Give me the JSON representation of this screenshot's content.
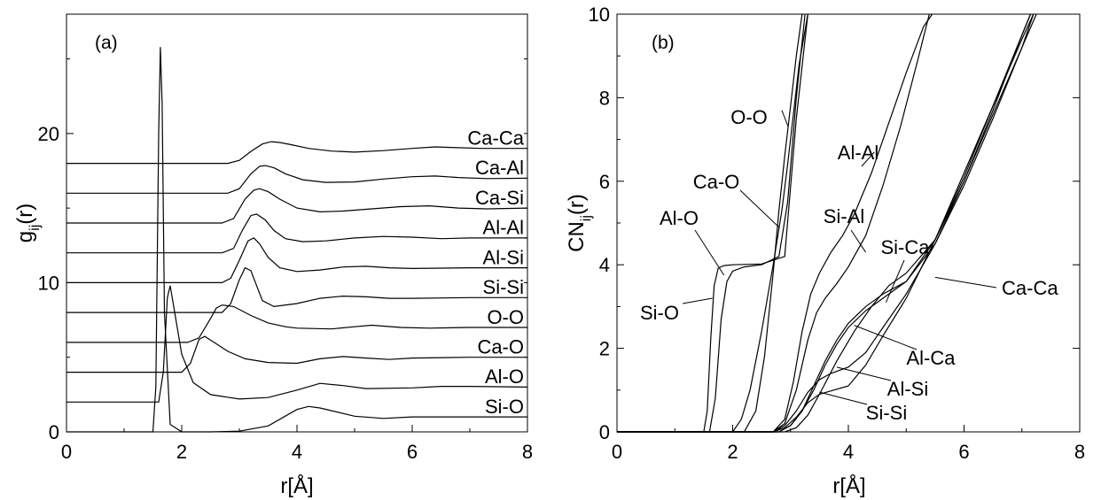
{
  "chart_data": [
    {
      "type": "line",
      "panel_label": "(a)",
      "xlabel": "r[Å]",
      "ylabel": "g_ij(r)",
      "ylabel_main": "g",
      "ylabel_sub": "ij",
      "ylabel_tail": "(r)",
      "xlim": [
        0,
        8
      ],
      "ylim": [
        0,
        28
      ],
      "xticks": [
        0,
        2,
        4,
        6,
        8
      ],
      "yticks": [
        0,
        10,
        20
      ],
      "note": "curves vertically offset by 2 units each",
      "series": [
        {
          "name": "Si-O",
          "offset": 0,
          "x": [
            0,
            1.5,
            1.55,
            1.6,
            1.63,
            1.66,
            1.7,
            1.8,
            2.0,
            2.5,
            3.0,
            3.5,
            4.0,
            4.2,
            4.4,
            5.0,
            5.5,
            6.0,
            7.0,
            8.0
          ],
          "y": [
            0,
            0,
            3,
            20,
            25.8,
            22,
            8,
            0.5,
            0,
            0,
            0.05,
            0.4,
            1.5,
            1.7,
            1.6,
            1.05,
            0.9,
            1.0,
            1.0,
            1.0
          ]
        },
        {
          "name": "Al-O",
          "offset": 2,
          "x": [
            0,
            1.6,
            1.68,
            1.75,
            1.8,
            1.9,
            2.0,
            2.2,
            2.5,
            3.0,
            3.5,
            4.0,
            4.4,
            4.8,
            5.2,
            6.0,
            6.5,
            7.0,
            8.0
          ],
          "y": [
            0,
            0,
            2,
            7,
            7.8,
            5.5,
            3.2,
            1.3,
            0.5,
            0.2,
            0.3,
            0.8,
            1.25,
            1.1,
            0.9,
            0.95,
            1.05,
            1.05,
            1.0
          ]
        },
        {
          "name": "Ca-O",
          "offset": 4,
          "x": [
            0,
            2.0,
            2.15,
            2.3,
            2.4,
            2.6,
            2.8,
            3.1,
            3.5,
            4.0,
            4.4,
            4.8,
            5.2,
            5.6,
            6.0,
            7.0,
            8.0
          ],
          "y": [
            0,
            0,
            0.6,
            2.2,
            2.4,
            1.9,
            1.4,
            0.9,
            0.65,
            0.6,
            0.9,
            1.05,
            0.95,
            0.85,
            0.95,
            1.0,
            1.0
          ]
        },
        {
          "name": "O-O",
          "offset": 6,
          "x": [
            0,
            2.1,
            2.3,
            2.5,
            2.6,
            2.7,
            2.9,
            3.2,
            3.5,
            3.8,
            4.0,
            4.6,
            5.0,
            5.3,
            5.8,
            6.3,
            7.0,
            8.0
          ],
          "y": [
            0,
            0,
            0.3,
            1.6,
            2.3,
            2.5,
            2.4,
            1.8,
            1.3,
            1.05,
            0.95,
            0.9,
            1.05,
            1.15,
            1.0,
            0.95,
            1.0,
            1.0
          ]
        },
        {
          "name": "Si-Si",
          "offset": 8,
          "x": [
            0,
            2.7,
            2.85,
            3.0,
            3.1,
            3.2,
            3.3,
            3.4,
            3.6,
            4.0,
            4.4,
            4.8,
            5.2,
            5.6,
            6.0,
            7.0,
            8.0
          ],
          "y": [
            0,
            0,
            0.6,
            2.2,
            3.0,
            2.8,
            1.8,
            0.8,
            0.4,
            0.6,
            0.95,
            1.1,
            1.05,
            0.95,
            0.95,
            1.0,
            1.0
          ]
        },
        {
          "name": "Al-Si",
          "offset": 10,
          "x": [
            0,
            2.7,
            2.85,
            3.0,
            3.15,
            3.25,
            3.35,
            3.5,
            3.7,
            4.0,
            4.4,
            4.8,
            5.2,
            5.6,
            6.0,
            7.0,
            8.0
          ],
          "y": [
            0,
            0,
            0.3,
            1.5,
            2.8,
            3.0,
            2.6,
            1.7,
            1.0,
            0.75,
            0.85,
            1.05,
            1.1,
            1.0,
            0.95,
            1.0,
            1.0
          ]
        },
        {
          "name": "Al-Al",
          "offset": 12,
          "x": [
            0,
            2.7,
            2.9,
            3.05,
            3.2,
            3.3,
            3.45,
            3.6,
            3.8,
            4.1,
            4.5,
            5.0,
            5.5,
            6.0,
            6.5,
            7.0,
            8.0
          ],
          "y": [
            0,
            0,
            0.3,
            1.5,
            2.5,
            2.6,
            2.2,
            1.5,
            0.95,
            0.75,
            0.8,
            1.0,
            1.1,
            1.05,
            0.95,
            1.0,
            1.0
          ]
        },
        {
          "name": "Ca-Si",
          "offset": 14,
          "x": [
            0,
            2.7,
            2.9,
            3.1,
            3.25,
            3.35,
            3.5,
            3.7,
            4.0,
            4.4,
            4.8,
            5.3,
            5.8,
            6.3,
            6.8,
            7.3,
            8.0
          ],
          "y": [
            0,
            0,
            0.3,
            1.6,
            2.2,
            2.3,
            2.1,
            1.6,
            1.0,
            0.75,
            0.8,
            0.95,
            1.1,
            1.15,
            1.0,
            0.95,
            1.0
          ]
        },
        {
          "name": "Ca-Al",
          "offset": 16,
          "x": [
            0,
            2.8,
            3.0,
            3.2,
            3.35,
            3.45,
            3.6,
            3.8,
            4.1,
            4.5,
            5.0,
            5.5,
            6.0,
            6.4,
            6.8,
            7.3,
            8.0
          ],
          "y": [
            0,
            0,
            0.3,
            1.3,
            1.8,
            1.85,
            1.7,
            1.3,
            0.9,
            0.72,
            0.75,
            0.95,
            1.1,
            1.15,
            1.05,
            0.98,
            1.0
          ]
        },
        {
          "name": "Ca-Ca",
          "offset": 18,
          "x": [
            0,
            2.8,
            3.0,
            3.2,
            3.4,
            3.55,
            3.7,
            3.9,
            4.2,
            4.6,
            5.0,
            5.5,
            6.0,
            6.4,
            6.8,
            7.2,
            8.0
          ],
          "y": [
            0,
            0,
            0.2,
            0.8,
            1.3,
            1.45,
            1.4,
            1.25,
            1.0,
            0.82,
            0.75,
            0.85,
            1.0,
            1.1,
            1.05,
            1.0,
            1.0
          ]
        }
      ]
    },
    {
      "type": "line",
      "panel_label": "(b)",
      "xlabel": "r[Å]",
      "ylabel": "CN_ij(r)",
      "ylabel_main": "CN",
      "ylabel_sub": "ij",
      "ylabel_tail": "(r)",
      "xlim": [
        0,
        8
      ],
      "ylim": [
        0,
        10
      ],
      "xticks": [
        0,
        2,
        4,
        6,
        8
      ],
      "yticks": [
        0,
        2,
        4,
        6,
        8,
        10
      ],
      "series": [
        {
          "name": "Si-O",
          "x": [
            0,
            1.5,
            1.56,
            1.62,
            1.68,
            1.75,
            1.85,
            2.0,
            2.5,
            2.9,
            3.1,
            3.3
          ],
          "y": [
            0,
            0,
            0.5,
            2.2,
            3.5,
            3.92,
            3.98,
            4.0,
            4.02,
            4.2,
            7.5,
            10
          ]
        },
        {
          "name": "Al-O",
          "x": [
            0,
            1.6,
            1.7,
            1.8,
            1.9,
            2.0,
            2.2,
            2.5,
            2.8,
            2.95,
            3.1,
            3.25
          ],
          "y": [
            0,
            0,
            0.8,
            2.7,
            3.6,
            3.85,
            3.95,
            4.0,
            4.2,
            5.5,
            8.0,
            10
          ]
        },
        {
          "name": "Ca-O",
          "x": [
            0,
            2.0,
            2.15,
            2.3,
            2.5,
            2.7,
            2.85,
            2.95,
            3.05,
            3.15,
            3.3
          ],
          "y": [
            0,
            0,
            0.3,
            1.0,
            2.4,
            4.0,
            5.3,
            6.4,
            7.6,
            8.8,
            10
          ]
        },
        {
          "name": "O-O",
          "x": [
            0,
            2.2,
            2.4,
            2.55,
            2.7,
            2.8,
            2.9,
            3.0,
            3.1,
            3.2
          ],
          "y": [
            0,
            0,
            0.5,
            1.8,
            3.8,
            5.3,
            6.6,
            7.8,
            9.0,
            10
          ]
        },
        {
          "name": "Si-Si",
          "x": [
            0,
            2.7,
            2.9,
            3.1,
            3.3,
            3.5,
            3.7,
            4.0,
            4.3,
            4.6,
            5.0,
            5.5,
            6.0,
            6.5,
            7.0,
            7.2
          ],
          "y": [
            0,
            0,
            0.1,
            0.35,
            0.7,
            0.9,
            0.98,
            1.1,
            1.6,
            2.3,
            3.2,
            4.6,
            6.2,
            7.8,
            9.4,
            10
          ]
        },
        {
          "name": "Al-Si",
          "x": [
            0,
            2.7,
            2.9,
            3.1,
            3.3,
            3.5,
            3.7,
            4.0,
            4.3,
            4.6,
            5.0,
            5.5,
            6.0,
            6.5,
            7.0,
            7.25
          ],
          "y": [
            0,
            0,
            0.15,
            0.5,
            0.95,
            1.25,
            1.4,
            1.55,
            1.9,
            2.5,
            3.3,
            4.5,
            6.0,
            7.6,
            9.2,
            10
          ]
        },
        {
          "name": "Al-Ca",
          "x": [
            0,
            2.8,
            3.0,
            3.2,
            3.4,
            3.6,
            3.8,
            4.0,
            4.3,
            4.6,
            5.0,
            5.5,
            6.0,
            6.5,
            7.0,
            7.2
          ],
          "y": [
            0,
            0,
            0.15,
            0.5,
            1.0,
            1.6,
            2.1,
            2.5,
            2.9,
            3.2,
            3.6,
            4.5,
            5.9,
            7.5,
            9.2,
            10
          ]
        },
        {
          "name": "Si-Ca",
          "x": [
            0,
            2.8,
            3.0,
            3.2,
            3.4,
            3.6,
            3.8,
            4.0,
            4.3,
            4.6,
            5.0,
            5.5,
            6.0,
            6.5,
            7.0,
            7.15
          ],
          "y": [
            0,
            0,
            0.15,
            0.5,
            1.1,
            1.7,
            2.2,
            2.6,
            3.0,
            3.3,
            3.6,
            4.6,
            6.1,
            7.8,
            9.5,
            10
          ]
        },
        {
          "name": "Ca-Ca",
          "x": [
            0,
            2.9,
            3.1,
            3.3,
            3.5,
            3.8,
            4.1,
            4.4,
            4.7,
            5.0,
            5.5,
            6.0,
            6.5,
            7.0,
            7.15
          ],
          "y": [
            0,
            0,
            0.1,
            0.4,
            0.9,
            1.7,
            2.4,
            3.0,
            3.5,
            3.8,
            4.6,
            6.0,
            7.7,
            9.5,
            10
          ]
        },
        {
          "name": "Si-Al",
          "x": [
            0,
            2.7,
            2.9,
            3.1,
            3.3,
            3.45,
            3.6,
            3.8,
            4.0,
            4.3,
            4.6,
            4.9,
            5.2,
            5.4
          ],
          "y": [
            0,
            0,
            0.2,
            1.0,
            2.2,
            2.85,
            3.2,
            3.55,
            3.95,
            4.7,
            5.9,
            7.3,
            8.9,
            10
          ]
        },
        {
          "name": "Al-Al",
          "x": [
            0,
            2.7,
            2.9,
            3.05,
            3.2,
            3.35,
            3.5,
            3.7,
            3.9,
            4.1,
            4.4,
            4.7,
            5.0,
            5.3,
            5.45
          ],
          "y": [
            0,
            0,
            0.3,
            1.2,
            2.4,
            3.3,
            3.8,
            4.3,
            4.7,
            5.2,
            6.2,
            7.4,
            8.6,
            9.7,
            10
          ]
        }
      ],
      "annotations": [
        {
          "text": "O-O",
          "x": 2.85,
          "y": 7.7
        },
        {
          "text": "Ca-O",
          "x": 2.8,
          "y": 4.9
        },
        {
          "text": "Al-O",
          "x": 1.85,
          "y": 3.75
        },
        {
          "text": "Si-O",
          "x": 1.65,
          "y": 3.2
        },
        {
          "text": "Al-Al",
          "x": 4.45,
          "y": 6.7
        },
        {
          "text": "Si-Al",
          "x": 4.3,
          "y": 4.3
        },
        {
          "text": "Si-Ca",
          "x": 4.65,
          "y": 3.1
        },
        {
          "text": "Ca-Ca",
          "x": 5.5,
          "y": 3.7
        },
        {
          "text": "Al-Ca",
          "x": 4.1,
          "y": 2.55
        },
        {
          "text": "Al-Si",
          "x": 3.8,
          "y": 1.55
        },
        {
          "text": "Si-Si",
          "x": 3.5,
          "y": 0.95
        }
      ]
    }
  ]
}
